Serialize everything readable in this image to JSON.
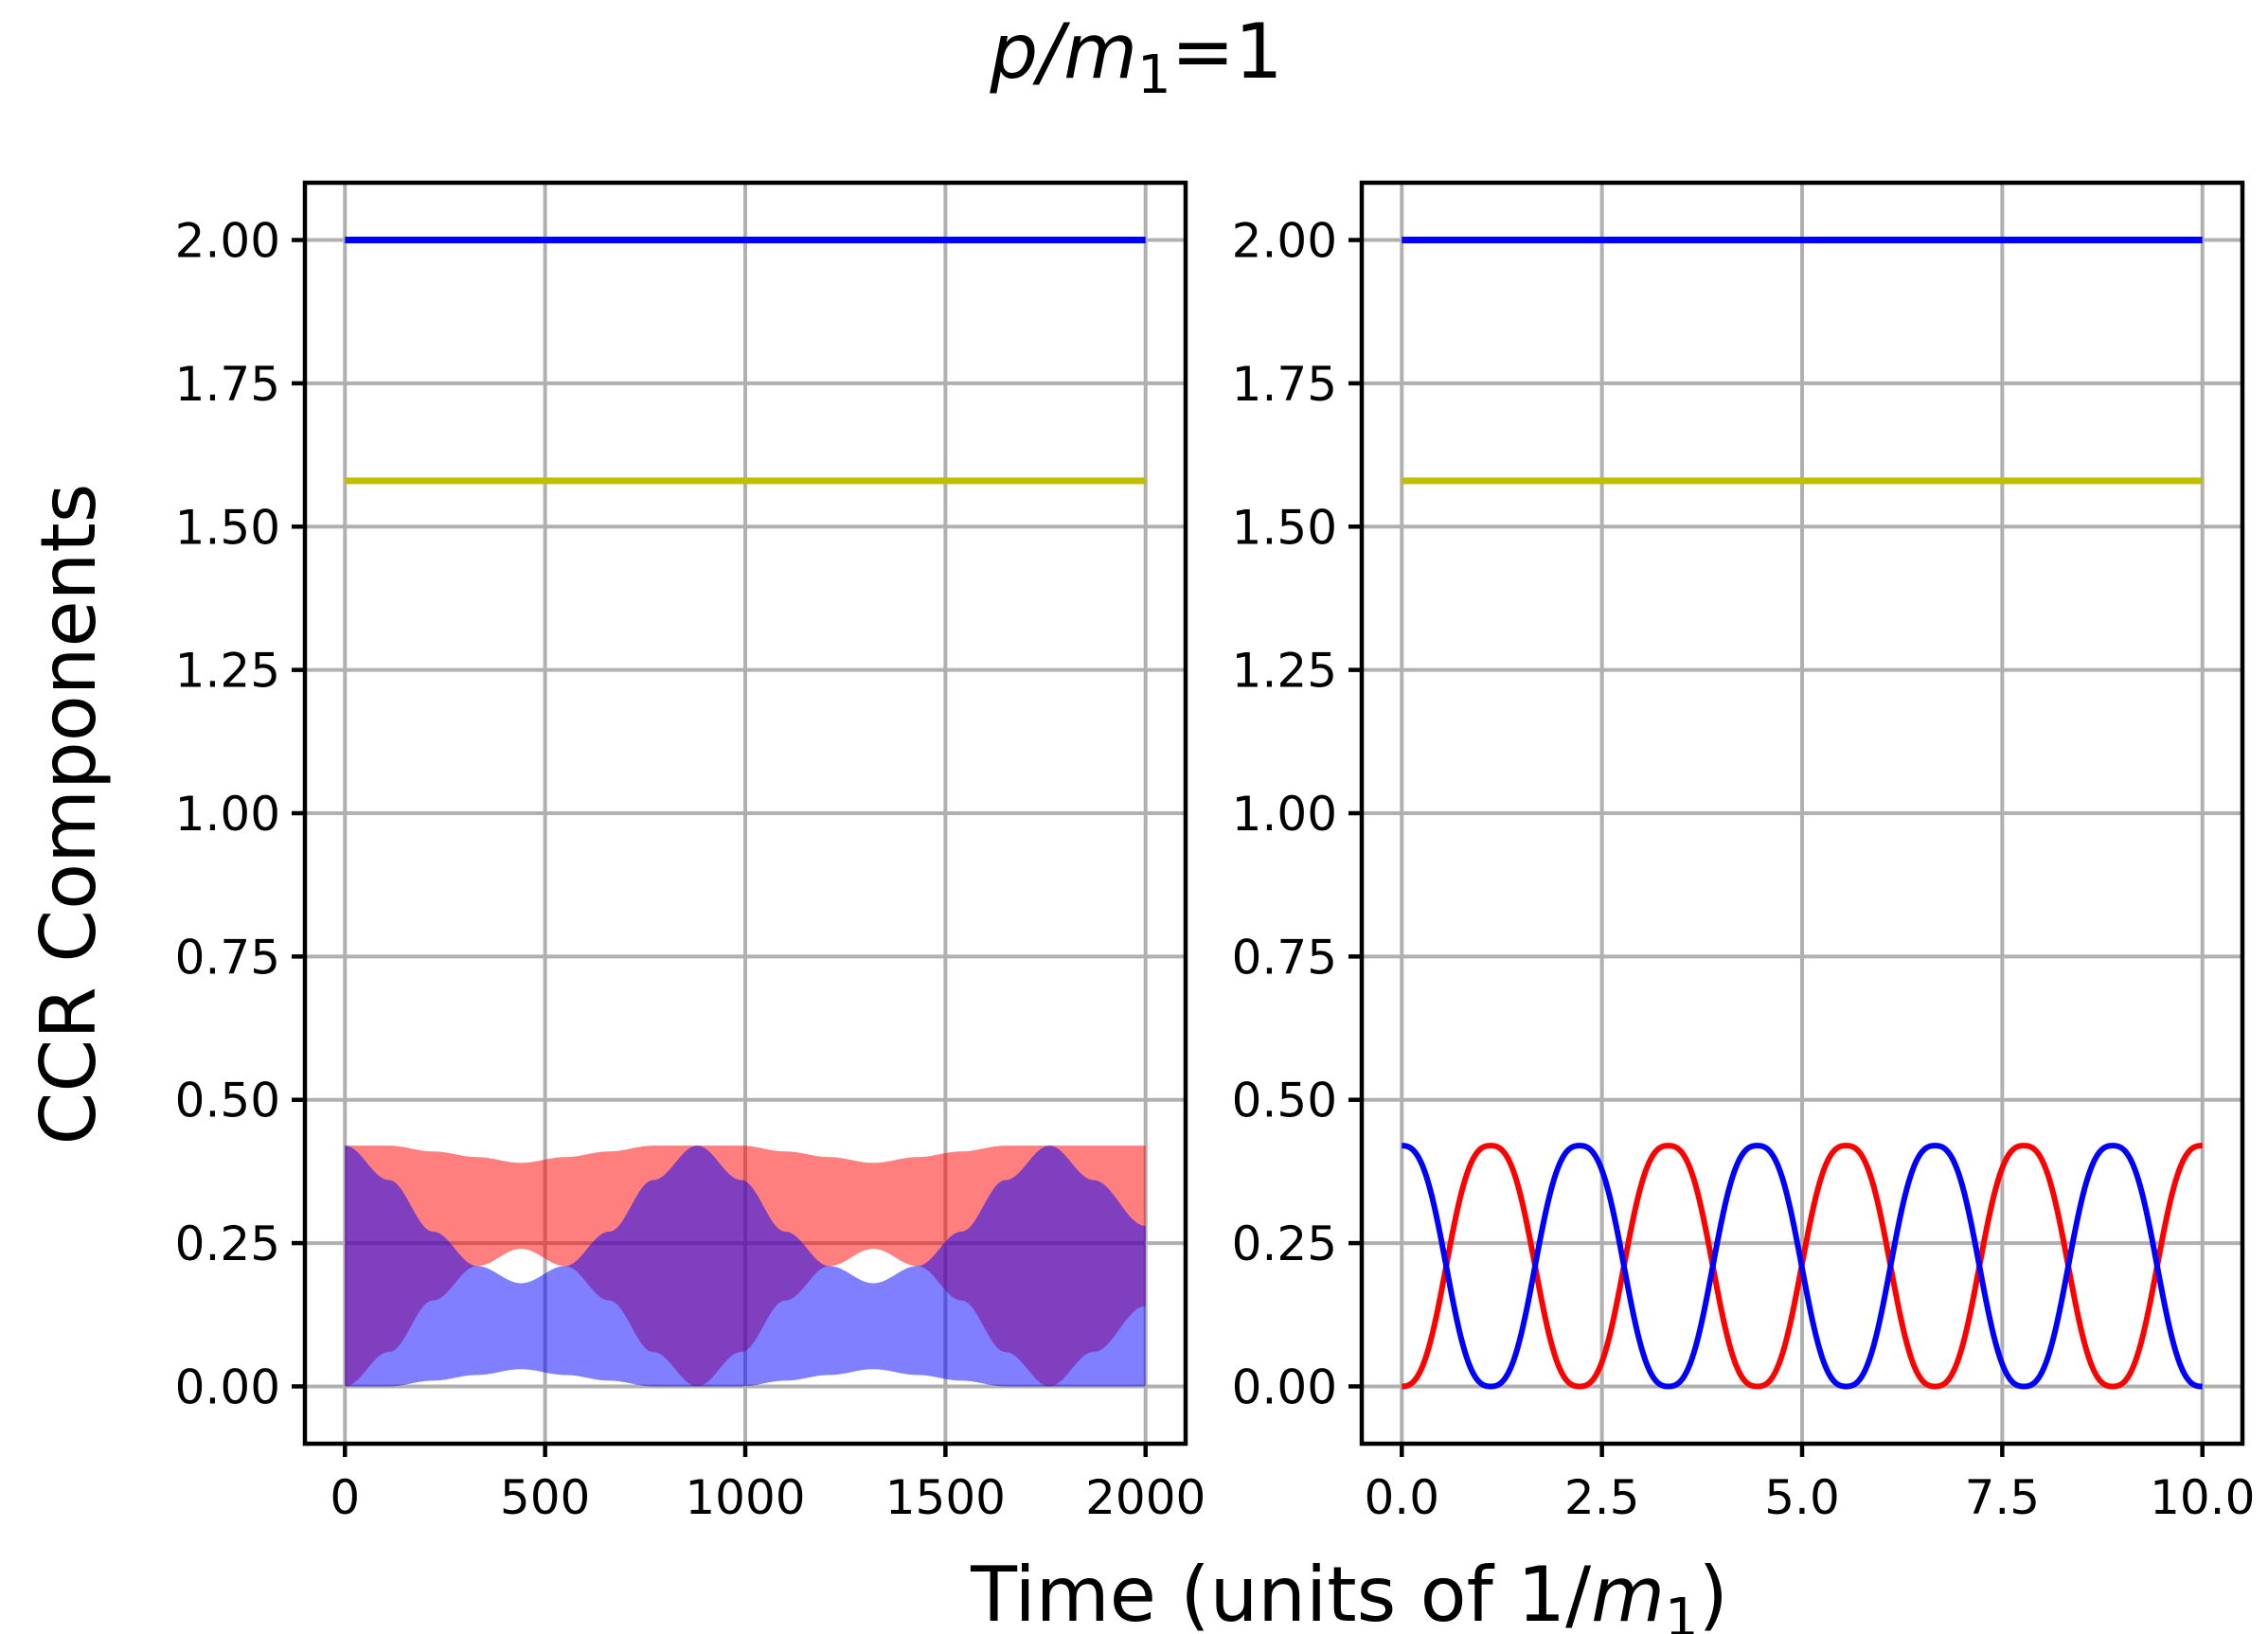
{
  "title": {
    "italic": "p/m",
    "sub": "1",
    "rest": "=1"
  },
  "ylabel": "CCR Components",
  "xlabel": {
    "pre": "Time (units of 1/",
    "italic": "m",
    "sub": "1",
    "post": ")"
  },
  "chart_data": [
    {
      "type": "area",
      "panel": "left",
      "xlim": [
        -100,
        2100
      ],
      "ylim": [
        -0.1,
        2.1
      ],
      "grid": true,
      "xticks": [
        "0",
        "500",
        "1000",
        "1500",
        "2000"
      ],
      "xtick_values": [
        0,
        500,
        1000,
        1500,
        2000
      ],
      "yticks": [
        "0.00",
        "0.25",
        "0.50",
        "0.75",
        "1.00",
        "1.25",
        "1.50",
        "1.75",
        "2.00"
      ],
      "ytick_values": [
        0,
        0.25,
        0.5,
        0.75,
        1.0,
        1.25,
        1.5,
        1.75,
        2.0
      ],
      "series": [
        {
          "name": "blue constant",
          "kind": "line",
          "color": "#0000ff",
          "x": [
            0,
            2000
          ],
          "y": [
            2.0,
            2.0
          ]
        },
        {
          "name": "yellow constant",
          "kind": "line",
          "color": "#bfbf00",
          "x": [
            0,
            2000
          ],
          "y": [
            1.58,
            1.58
          ]
        },
        {
          "name": "red band",
          "kind": "band",
          "color": "#ff0000",
          "opacity": 0.5,
          "x": [
            0,
            110,
            220,
            330,
            440,
            550,
            660,
            770,
            880,
            990,
            1100,
            1210,
            1320,
            1430,
            1540,
            1650,
            1760,
            1870,
            2000
          ],
          "lower": [
            0.0,
            0.06,
            0.15,
            0.21,
            0.24,
            0.21,
            0.15,
            0.06,
            0.0,
            0.06,
            0.15,
            0.21,
            0.24,
            0.21,
            0.15,
            0.06,
            0.0,
            0.06,
            0.14
          ],
          "upper": [
            0.42,
            0.42,
            0.41,
            0.4,
            0.39,
            0.4,
            0.41,
            0.42,
            0.42,
            0.42,
            0.41,
            0.4,
            0.39,
            0.4,
            0.41,
            0.42,
            0.42,
            0.42,
            0.42
          ]
        },
        {
          "name": "blue band",
          "kind": "band",
          "color": "#0000ff",
          "opacity": 0.5,
          "x": [
            0,
            110,
            220,
            330,
            440,
            550,
            660,
            770,
            880,
            990,
            1100,
            1210,
            1320,
            1430,
            1540,
            1650,
            1760,
            1870,
            2000
          ],
          "lower": [
            0.0,
            0.0,
            0.01,
            0.02,
            0.03,
            0.02,
            0.01,
            0.0,
            0.0,
            0.0,
            0.01,
            0.02,
            0.03,
            0.02,
            0.01,
            0.0,
            0.0,
            0.0,
            0.0
          ],
          "upper": [
            0.42,
            0.36,
            0.27,
            0.21,
            0.18,
            0.21,
            0.27,
            0.36,
            0.42,
            0.36,
            0.27,
            0.21,
            0.18,
            0.21,
            0.27,
            0.36,
            0.42,
            0.36,
            0.28
          ]
        }
      ]
    },
    {
      "type": "line",
      "panel": "right",
      "xlim": [
        -0.5,
        10.5
      ],
      "ylim": [
        -0.1,
        2.1
      ],
      "grid": true,
      "xticks": [
        "0.0",
        "2.5",
        "5.0",
        "7.5",
        "10.0"
      ],
      "xtick_values": [
        0,
        2.5,
        5.0,
        7.5,
        10.0
      ],
      "yticks": [
        "0.00",
        "0.25",
        "0.50",
        "0.75",
        "1.00",
        "1.25",
        "1.50",
        "1.75",
        "2.00"
      ],
      "ytick_values": [
        0,
        0.25,
        0.5,
        0.75,
        1.0,
        1.25,
        1.5,
        1.75,
        2.0
      ],
      "series": [
        {
          "name": "blue constant",
          "color": "#0000ff",
          "x": [
            0,
            10
          ],
          "y": [
            2.0,
            2.0
          ]
        },
        {
          "name": "yellow constant",
          "color": "#bfbf00",
          "x": [
            0,
            10
          ],
          "y": [
            1.58,
            1.58
          ]
        },
        {
          "name": "red oscillation",
          "color": "#ff0000",
          "amplitude": 0.42,
          "period": 2.22,
          "phase": "starts at 0"
        },
        {
          "name": "blue oscillation",
          "color": "#0000ff",
          "amplitude": 0.42,
          "period": 2.22,
          "phase": "starts at 0.42"
        }
      ]
    }
  ]
}
